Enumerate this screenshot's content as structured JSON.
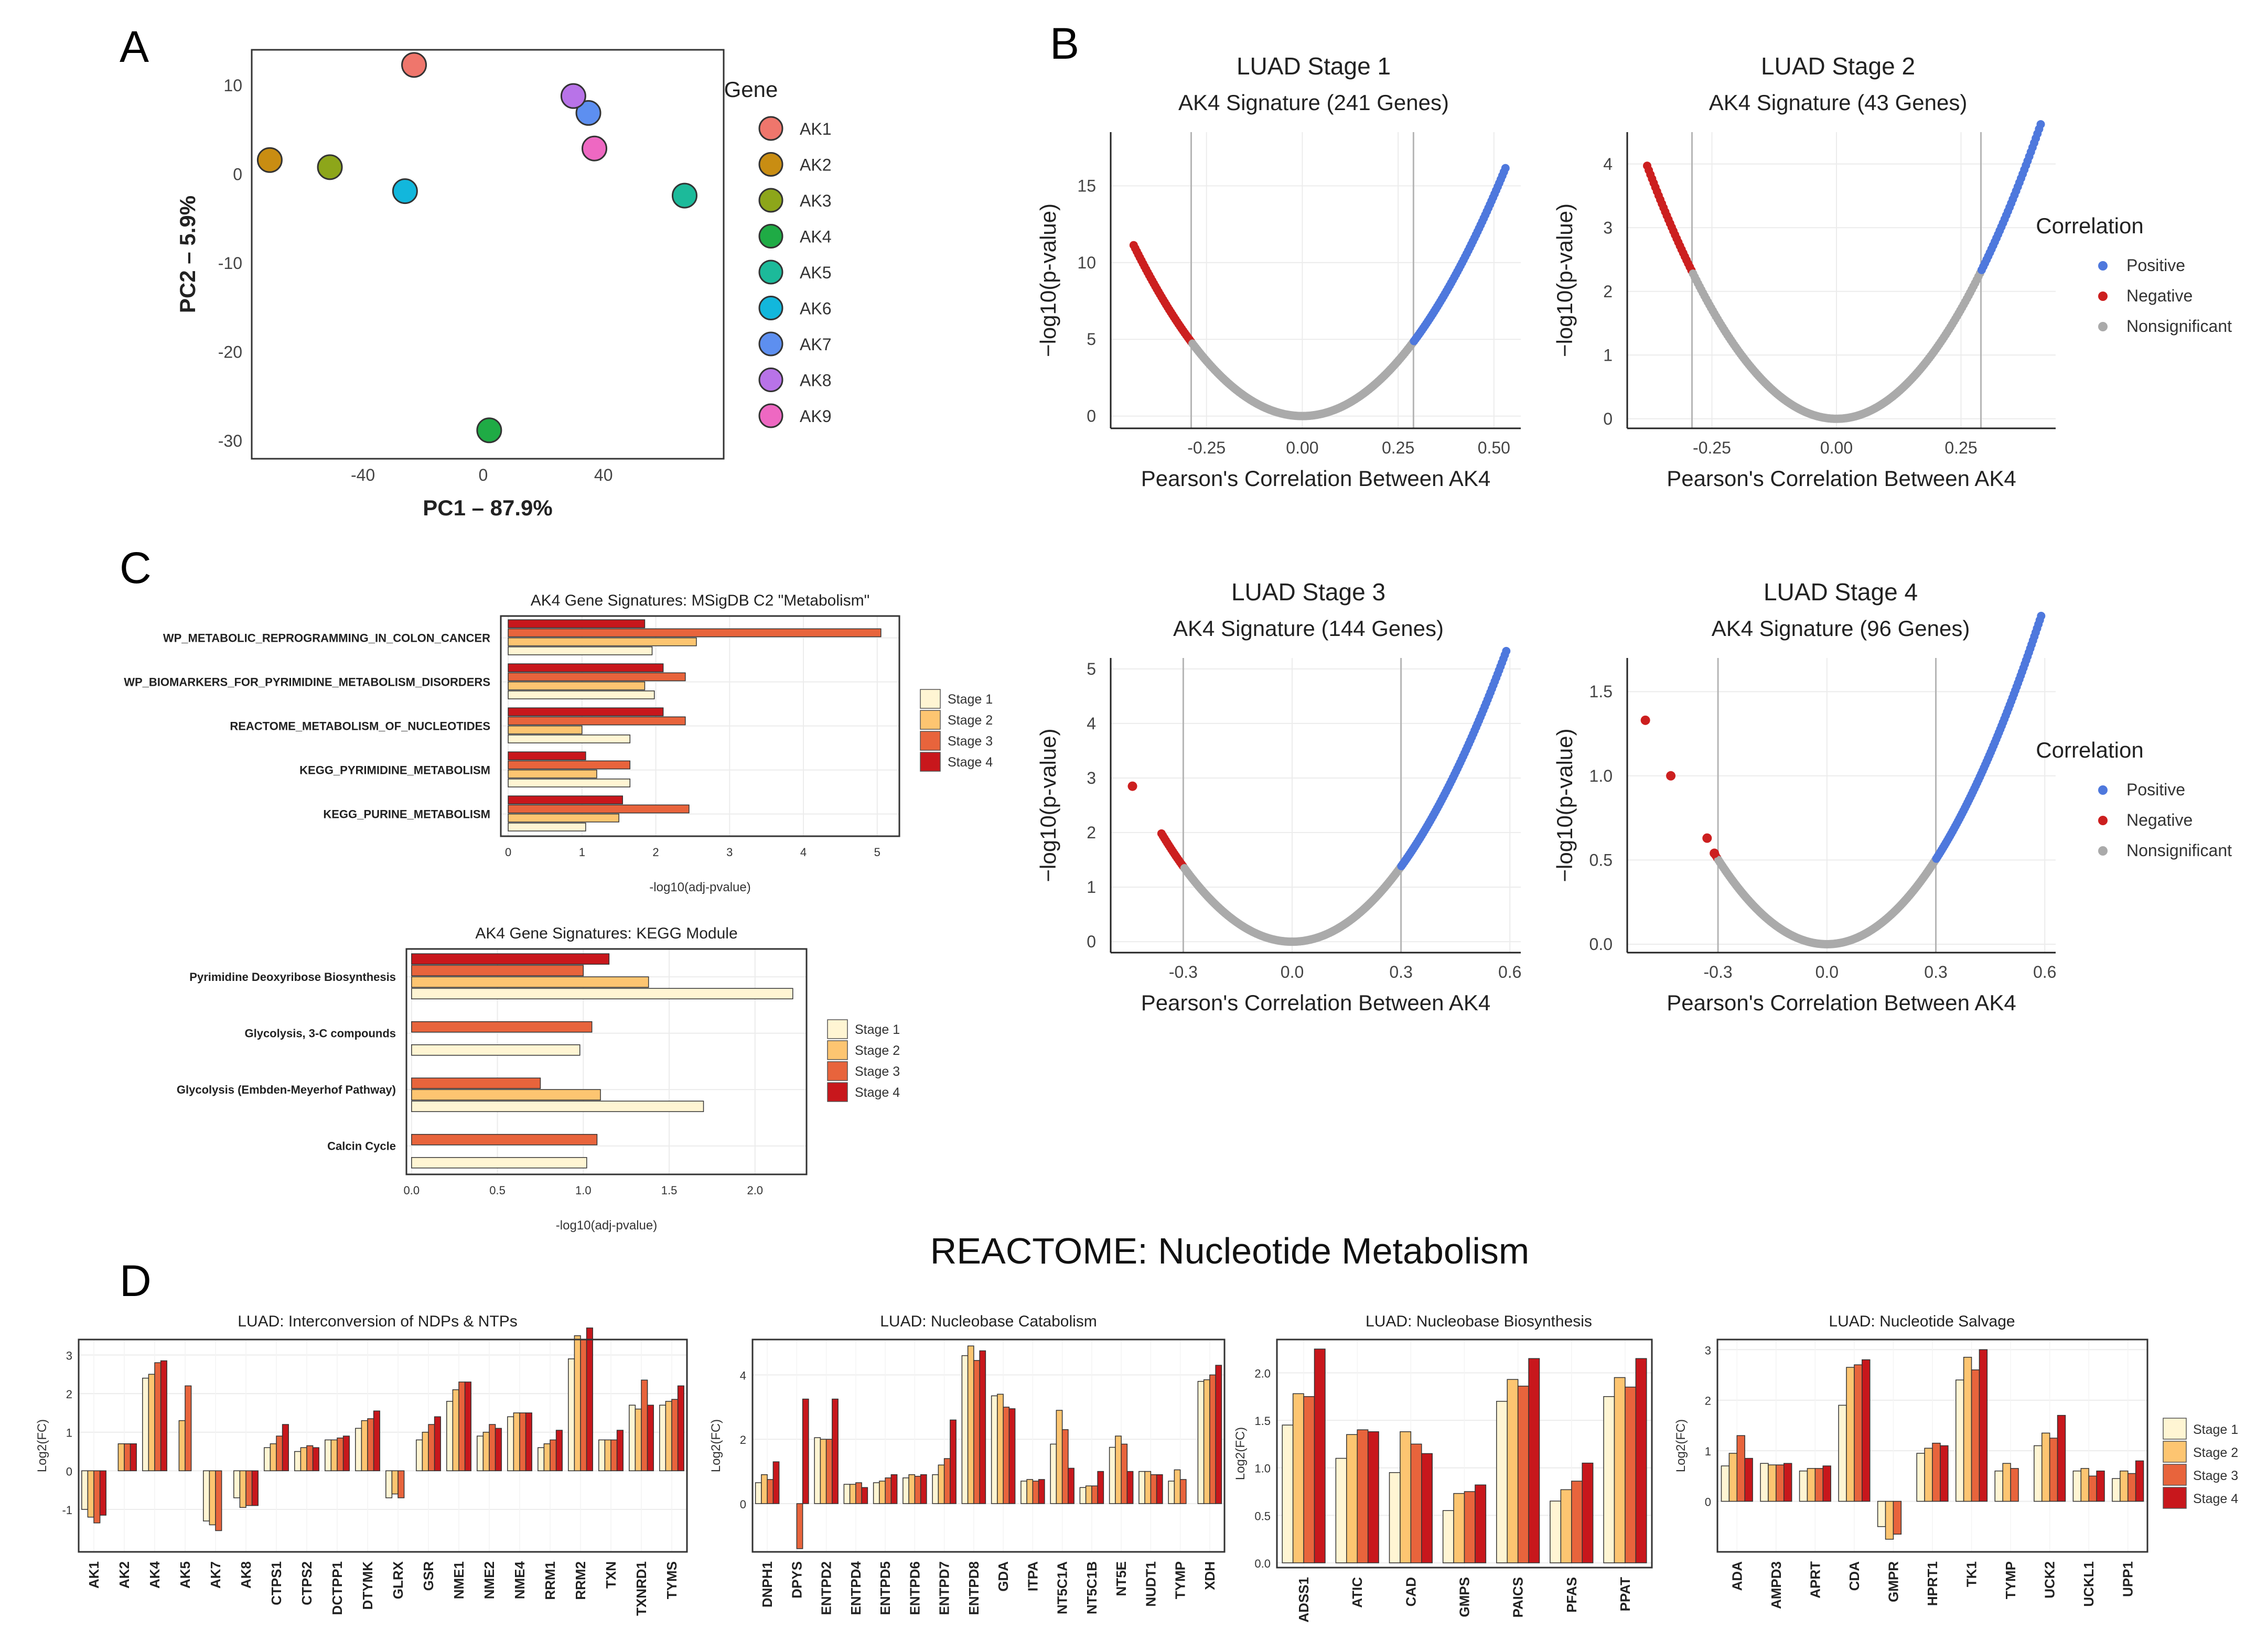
{
  "panel_labels": {
    "A": "A",
    "B": "B",
    "C": "C",
    "D": "D"
  },
  "stage_colors": [
    "#fff5d3",
    "#fdc571",
    "#e8643c",
    "#c8171c"
  ],
  "chart_data": [
    {
      "id": "A",
      "type": "scatter",
      "title": "",
      "xlabel": "PC1 – 87.9%",
      "ylabel": "PC2 – 5.9%",
      "xlim": [
        -77,
        80
      ],
      "ylim": [
        -32,
        14
      ],
      "xticks": [
        -40,
        0,
        40
      ],
      "yticks": [
        10,
        0,
        -10,
        -20,
        -30
      ],
      "legend_title": "Gene",
      "points": [
        {
          "gene": "AK1",
          "x": -23,
          "y": 12.3,
          "color": "#ef766c"
        },
        {
          "gene": "AK2",
          "x": -71,
          "y": 1.6,
          "color": "#c98d12"
        },
        {
          "gene": "AK3",
          "x": -51,
          "y": 0.8,
          "color": "#8da61a"
        },
        {
          "gene": "AK4",
          "x": 2,
          "y": -28.8,
          "color": "#1fab45"
        },
        {
          "gene": "AK5",
          "x": 67,
          "y": -2.4,
          "color": "#1cba9a"
        },
        {
          "gene": "AK6",
          "x": -26,
          "y": -1.9,
          "color": "#12b7dc"
        },
        {
          "gene": "AK7",
          "x": 35,
          "y": 6.9,
          "color": "#5d8ff0"
        },
        {
          "gene": "AK8",
          "x": 30,
          "y": 8.8,
          "color": "#b873e8"
        },
        {
          "gene": "AK9",
          "x": 37,
          "y": 2.9,
          "color": "#ee68c2"
        }
      ]
    },
    {
      "id": "B1",
      "type": "scatter",
      "title": "LUAD Stage 1",
      "subtitle": "AK4 Signature (241 Genes)",
      "xlabel": "Pearson's Correlation Between AK4",
      "ylabel": "−log10(p-value)",
      "xlim": [
        -0.5,
        0.57
      ],
      "ylim": [
        -0.8,
        18.5
      ],
      "xticks": [
        "-0.25",
        "0.00",
        "0.25",
        "0.50"
      ],
      "yticks": [
        0,
        5,
        10,
        15
      ],
      "threshold": 0.29,
      "k": 57.5,
      "neg_min": -0.44,
      "pos_max": 0.53
    },
    {
      "id": "B2",
      "type": "scatter",
      "title": "LUAD Stage 2",
      "subtitle": "AK4 Signature (43 Genes)",
      "xlabel": "Pearson's Correlation Between AK4",
      "ylabel": "−log10(p-value)",
      "xlim": [
        -0.42,
        0.44
      ],
      "ylim": [
        -0.15,
        4.5
      ],
      "xticks": [
        "-0.25",
        "0.00",
        "0.25"
      ],
      "yticks": [
        0,
        1,
        2,
        3,
        4
      ],
      "threshold": 0.29,
      "k": 27.5,
      "neg_min": -0.38,
      "pos_max": 0.41
    },
    {
      "id": "B3",
      "type": "scatter",
      "title": "LUAD Stage 3",
      "subtitle": "AK4 Signature (144 Genes)",
      "xlabel": "Pearson's Correlation Between AK4",
      "ylabel": "−log10(p-value)",
      "xlim": [
        -0.5,
        0.63
      ],
      "ylim": [
        -0.2,
        5.2
      ],
      "xticks": [
        "-0.3",
        "0.0",
        "0.3",
        "0.6"
      ],
      "yticks": [
        0,
        1,
        2,
        3,
        4,
        5
      ],
      "threshold": 0.3,
      "k": 15.3,
      "neg_min": -0.36,
      "pos_max": 0.59,
      "extra_neg": [
        -0.44,
        2.85
      ]
    },
    {
      "id": "B4",
      "type": "scatter",
      "title": "LUAD Stage 4",
      "subtitle": "AK4 Signature (96 Genes)",
      "xlabel": "Pearson's Correlation Between AK4",
      "ylabel": "−log10(p-value)",
      "xlim": [
        -0.55,
        0.63
      ],
      "ylim": [
        -0.05,
        1.7
      ],
      "xticks": [
        "-0.3",
        "0.0",
        "0.3",
        "0.6"
      ],
      "yticks": [
        "0.0",
        "0.5",
        "1.0",
        "1.5"
      ],
      "threshold": 0.3,
      "k": 5.6,
      "neg_min": -0.31,
      "pos_max": 0.59,
      "extra_neg": [
        [
          -0.5,
          1.33
        ],
        [
          -0.43,
          1.0
        ],
        [
          -0.33,
          0.63
        ],
        [
          -0.31,
          0.54
        ]
      ]
    },
    {
      "id": "C1",
      "type": "bar",
      "orientation": "horizontal",
      "title": "AK4 Gene Signatures: MSigDB C2 \"Metabolism\"",
      "xlabel": "-log10(adj-pvalue)",
      "xlim": [
        -0.1,
        5.3
      ],
      "xticks": [
        0,
        1,
        2,
        3,
        4,
        5
      ],
      "categories": [
        "WP_METABOLIC_REPROGRAMMING_IN_COLON_CANCER",
        "WP_BIOMARKERS_FOR_PYRIMIDINE_METABOLISM_DISORDERS",
        "REACTOME_METABOLISM_OF_NUCLEOTIDES",
        "KEGG_PYRIMIDINE_METABOLISM",
        "KEGG_PURINE_METABOLISM"
      ],
      "series": [
        {
          "name": "Stage 1",
          "values": [
            1.95,
            1.98,
            1.65,
            1.65,
            1.05
          ]
        },
        {
          "name": "Stage 2",
          "values": [
            2.55,
            1.85,
            1.0,
            1.2,
            1.5
          ]
        },
        {
          "name": "Stage 3",
          "values": [
            5.05,
            2.4,
            2.4,
            1.65,
            2.45
          ]
        },
        {
          "name": "Stage 4",
          "values": [
            1.85,
            2.1,
            2.1,
            1.05,
            1.55
          ]
        }
      ]
    },
    {
      "id": "C2",
      "type": "bar",
      "orientation": "horizontal",
      "title": "AK4 Gene Signatures: KEGG Module",
      "xlabel": "-log10(adj-pvalue)",
      "xlim": [
        -0.03,
        2.3
      ],
      "xticks": [
        "0.0",
        "0.5",
        "1.0",
        "1.5",
        "2.0"
      ],
      "categories": [
        "Pyrimidine Deoxyribose Biosynthesis",
        "Glycolysis, 3-C compounds",
        "Glycolysis (Embden-Meyerhof Pathway)",
        "Calcin Cycle"
      ],
      "series": [
        {
          "name": "Stage 1",
          "values": [
            2.22,
            0.98,
            1.7,
            1.02
          ]
        },
        {
          "name": "Stage 2",
          "values": [
            1.38,
            null,
            1.1,
            null
          ]
        },
        {
          "name": "Stage 3",
          "values": [
            1.0,
            1.05,
            0.75,
            1.08
          ]
        },
        {
          "name": "Stage 4",
          "values": [
            1.15,
            null,
            null,
            null
          ]
        }
      ]
    },
    {
      "id": "D1",
      "type": "bar",
      "title": "LUAD: Interconversion of NDPs & NTPs",
      "ylabel": "Log2(FC)",
      "ylim": [
        -2.1,
        3.4
      ],
      "yticks": [
        -1,
        0,
        1,
        2,
        3
      ],
      "categories": [
        "AK1",
        "AK2",
        "AK4",
        "AK5",
        "AK7",
        "AK8",
        "CTPS1",
        "CTPS2",
        "DCTPP1",
        "DTYMK",
        "GLRX",
        "GSR",
        "NME1",
        "NME2",
        "NME4",
        "RRM1",
        "RRM2",
        "TXN",
        "TXNRD1",
        "TYMS"
      ],
      "series": [
        {
          "name": "Stage 1",
          "values": [
            -1.0,
            0.0,
            2.4,
            0.0,
            -1.3,
            -0.7,
            0.6,
            0.5,
            0.8,
            1.1,
            -0.7,
            0.8,
            1.8,
            0.9,
            1.4,
            0.6,
            2.9,
            0.8,
            1.7,
            1.7
          ]
        },
        {
          "name": "Stage 2",
          "values": [
            -1.2,
            0.7,
            2.5,
            1.3,
            -1.4,
            -0.95,
            0.7,
            0.6,
            0.8,
            1.3,
            -0.6,
            1.0,
            2.1,
            1.0,
            1.5,
            0.7,
            3.5,
            0.8,
            1.6,
            1.8
          ]
        },
        {
          "name": "Stage 3",
          "values": [
            -1.35,
            0.7,
            2.8,
            2.2,
            -1.55,
            -0.9,
            0.9,
            0.65,
            0.85,
            1.35,
            -0.7,
            1.2,
            2.3,
            1.2,
            1.5,
            0.8,
            3.4,
            0.8,
            2.35,
            1.85
          ]
        },
        {
          "name": "Stage 4",
          "values": [
            -1.15,
            0.7,
            2.85,
            0.0,
            0.0,
            -0.9,
            1.2,
            0.6,
            0.9,
            1.55,
            0.0,
            1.4,
            2.3,
            1.1,
            1.5,
            1.05,
            3.7,
            1.05,
            1.7,
            2.2
          ]
        }
      ]
    },
    {
      "id": "D2",
      "type": "bar",
      "title": "LUAD: Nucleobase Catabolism",
      "ylabel": "Log2(FC)",
      "ylim": [
        -1.5,
        5.1
      ],
      "yticks": [
        0,
        2,
        4
      ],
      "categories": [
        "DNPH1",
        "DPYS",
        "ENTPD2",
        "ENTPD4",
        "ENTPD5",
        "ENTPD6",
        "ENTPD7",
        "ENTPD8",
        "GDA",
        "ITPA",
        "NT5C1A",
        "NT5C1B",
        "NT5E",
        "NUDT1",
        "TYMP",
        "XDH"
      ],
      "series": [
        {
          "name": "Stage 1",
          "values": [
            0.65,
            0.0,
            2.05,
            0.6,
            0.65,
            0.8,
            0.9,
            4.6,
            3.35,
            0.7,
            1.85,
            0.5,
            1.75,
            1.0,
            0.7,
            3.8
          ]
        },
        {
          "name": "Stage 2",
          "values": [
            0.9,
            0.0,
            2.0,
            0.6,
            0.7,
            0.9,
            1.2,
            4.9,
            3.4,
            0.75,
            2.9,
            0.55,
            2.1,
            1.0,
            1.05,
            3.85
          ]
        },
        {
          "name": "Stage 3",
          "values": [
            0.75,
            -1.4,
            2.0,
            0.65,
            0.8,
            0.85,
            1.4,
            4.45,
            3.0,
            0.7,
            2.3,
            0.55,
            1.85,
            0.9,
            0.75,
            4.0
          ]
        },
        {
          "name": "Stage 4",
          "values": [
            1.3,
            3.25,
            3.25,
            0.5,
            0.9,
            0.9,
            2.6,
            4.75,
            2.95,
            0.75,
            1.1,
            1.0,
            1.0,
            0.9,
            0.0,
            4.3
          ]
        }
      ]
    },
    {
      "id": "D3",
      "type": "bar",
      "title": "LUAD: Nucleobase Biosynthesis",
      "ylabel": "Log2(FC)",
      "ylim": [
        -0.05,
        2.35
      ],
      "yticks": [
        "0.0",
        "0.5",
        "1.0",
        "1.5",
        "2.0"
      ],
      "categories": [
        "ADSS1",
        "ATIC",
        "CAD",
        "GMPS",
        "PAICS",
        "PFAS",
        "PPAT"
      ],
      "series": [
        {
          "name": "Stage 1",
          "values": [
            1.45,
            1.1,
            0.95,
            0.55,
            1.7,
            0.65,
            1.75
          ]
        },
        {
          "name": "Stage 2",
          "values": [
            1.78,
            1.35,
            1.38,
            0.73,
            1.93,
            0.77,
            1.95
          ]
        },
        {
          "name": "Stage 3",
          "values": [
            1.75,
            1.4,
            1.25,
            0.75,
            1.86,
            0.86,
            1.85
          ]
        },
        {
          "name": "Stage 4",
          "values": [
            2.25,
            1.38,
            1.15,
            0.82,
            2.15,
            1.05,
            2.15
          ]
        }
      ]
    },
    {
      "id": "D4",
      "type": "bar",
      "title": "LUAD: Nucleotide Salvage",
      "ylabel": "Log2(FC)",
      "ylim": [
        -1.0,
        3.2
      ],
      "yticks": [
        0,
        1,
        2,
        3
      ],
      "categories": [
        "ADA",
        "AMPD3",
        "APRT",
        "CDA",
        "GMPR",
        "HPRT1",
        "TK1",
        "TYMP",
        "UCK2",
        "UCKL1",
        "UPP1"
      ],
      "series": [
        {
          "name": "Stage 1",
          "values": [
            0.7,
            0.75,
            0.6,
            1.9,
            -0.5,
            0.95,
            2.4,
            0.6,
            1.1,
            0.6,
            0.45
          ]
        },
        {
          "name": "Stage 2",
          "values": [
            0.95,
            0.72,
            0.65,
            2.65,
            -0.75,
            1.05,
            2.85,
            0.75,
            1.35,
            0.65,
            0.6
          ]
        },
        {
          "name": "Stage 3",
          "values": [
            1.3,
            0.72,
            0.65,
            2.7,
            -0.65,
            1.15,
            2.6,
            0.65,
            1.25,
            0.5,
            0.55
          ]
        },
        {
          "name": "Stage 4",
          "values": [
            0.85,
            0.75,
            0.7,
            2.8,
            0.0,
            1.1,
            3.0,
            0.0,
            1.7,
            0.6,
            0.8
          ]
        }
      ]
    }
  ],
  "correlation_legend": {
    "title": "Correlation",
    "items": [
      "Positive",
      "Negative",
      "Nonsignificant"
    ],
    "colors": [
      "#4e78dd",
      "#cc1f1f",
      "#aaaaaa"
    ]
  },
  "stage_legend": {
    "items": [
      "Stage 1",
      "Stage 2",
      "Stage 3",
      "Stage 4"
    ]
  },
  "section_D_title": "REACTOME: Nucleotide Metabolism"
}
